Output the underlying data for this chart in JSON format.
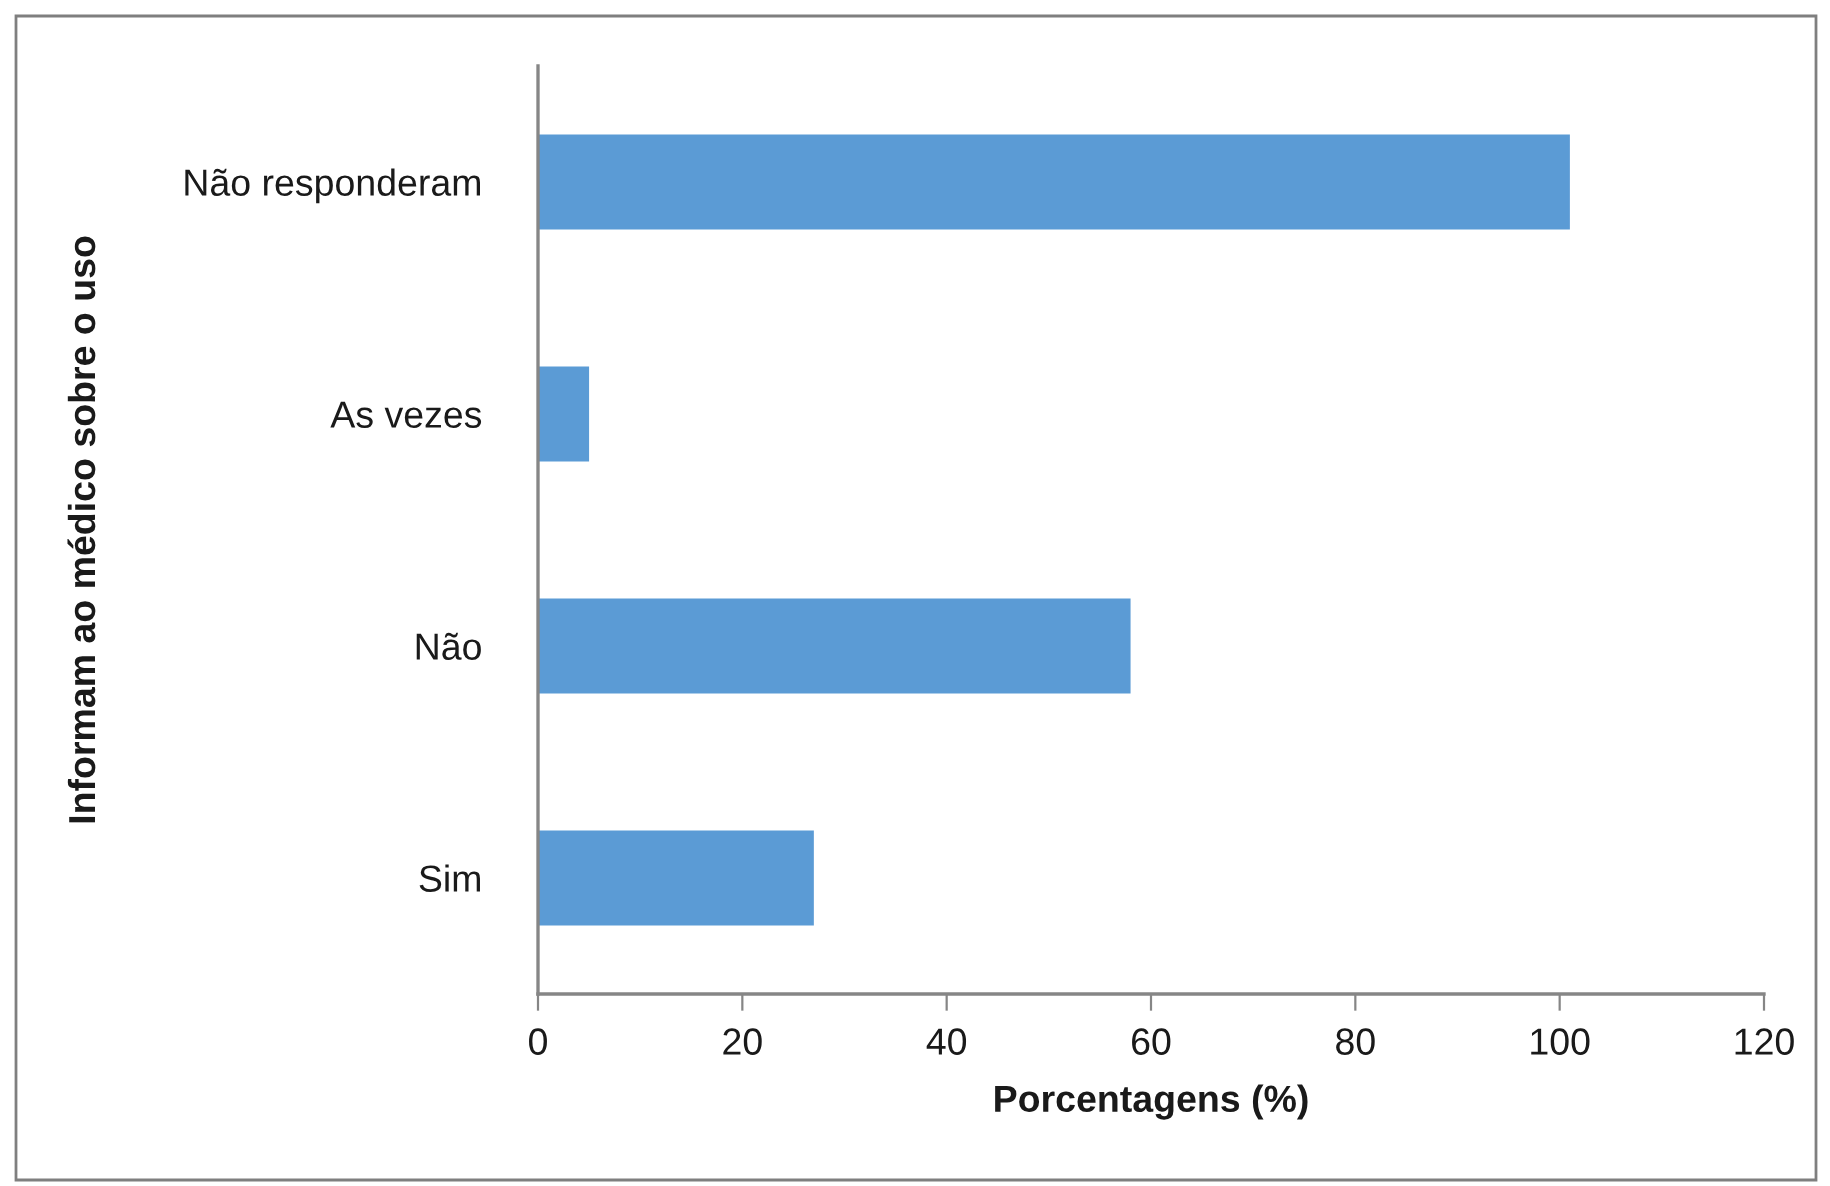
{
  "chart_data": {
    "type": "bar",
    "orientation": "horizontal",
    "xlabel": "Porcentagens (%)",
    "ylabel": "Informam ao médico sobre o uso",
    "categories": [
      "Não responderam",
      "As vezes",
      "Não",
      "Sim"
    ],
    "values": [
      101,
      5,
      58,
      27
    ],
    "color": "#5b9bd5",
    "xlim": [
      0,
      120
    ],
    "xticks": [
      0,
      20,
      40,
      60,
      80,
      100,
      120
    ]
  }
}
